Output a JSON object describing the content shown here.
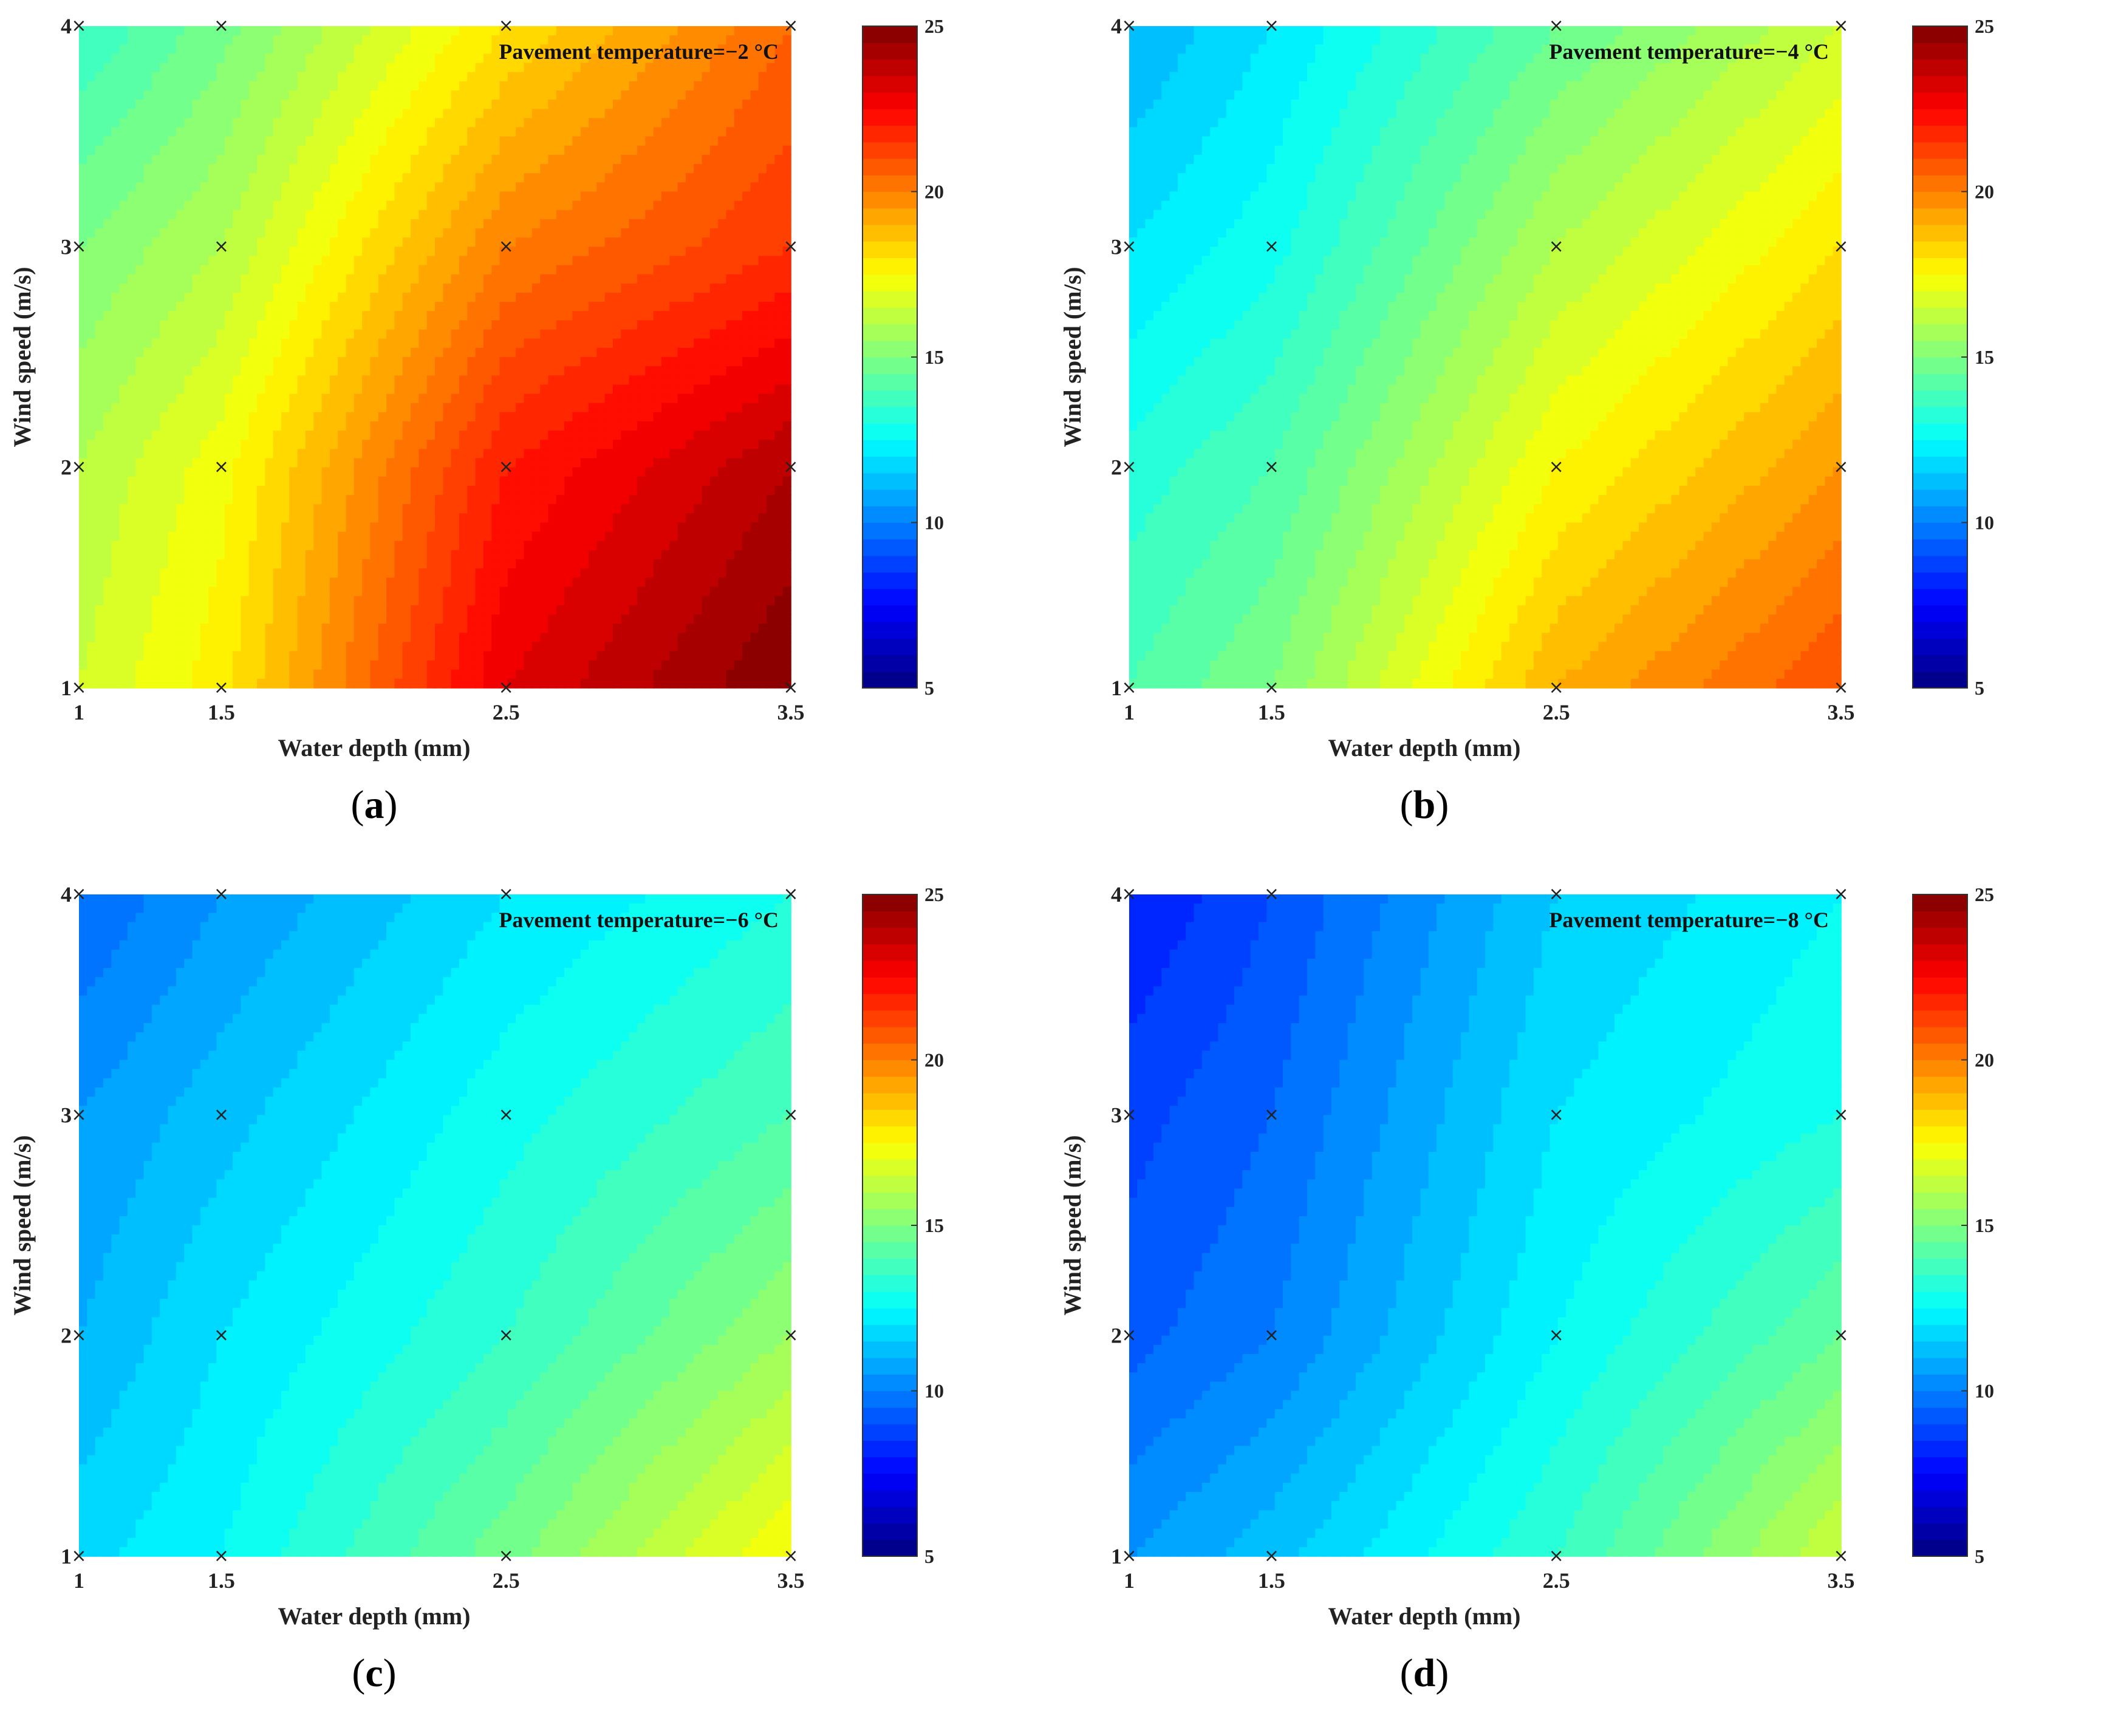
{
  "colormap": "jet",
  "marker_symbol": "×",
  "chart_data": [
    {
      "type": "heatmap",
      "panel_label": "a",
      "annotation": "Pavement temperature=−2 °C",
      "xlabel": "Water depth (mm)",
      "ylabel": "Wind speed (m/s)",
      "x": [
        1,
        1.5,
        2.5,
        3.5
      ],
      "y": [
        1,
        2,
        3,
        4
      ],
      "x_tick_labels": [
        "1",
        "1.5",
        "2.5",
        "3.5"
      ],
      "y_tick_labels": [
        "1",
        "2",
        "3",
        "4"
      ],
      "z": [
        [
          16.5,
          17.8,
          23.0,
          25.0
        ],
        [
          16.0,
          17.3,
          22.0,
          24.0
        ],
        [
          15.0,
          16.0,
          20.0,
          21.5
        ],
        [
          13.5,
          14.8,
          18.0,
          20.5
        ]
      ],
      "clim": [
        5,
        25
      ],
      "colorbar_ticks": [
        "5",
        "10",
        "15",
        "20",
        "25"
      ],
      "markers_at_grid": true
    },
    {
      "type": "heatmap",
      "panel_label": "b",
      "annotation": "Pavement temperature=−4 °C",
      "xlabel": "Water depth (mm)",
      "ylabel": "Wind speed (m/s)",
      "x": [
        1,
        1.5,
        2.5,
        3.5
      ],
      "y": [
        1,
        2,
        3,
        4
      ],
      "x_tick_labels": [
        "1",
        "1.5",
        "2.5",
        "3.5"
      ],
      "y_tick_labels": [
        "1",
        "2",
        "3",
        "4"
      ],
      "z": [
        [
          14.0,
          15.0,
          19.0,
          21.0
        ],
        [
          13.2,
          14.0,
          17.5,
          19.5
        ],
        [
          12.0,
          12.8,
          16.0,
          18.0
        ],
        [
          11.0,
          12.0,
          14.5,
          16.5
        ]
      ],
      "clim": [
        5,
        25
      ],
      "colorbar_ticks": [
        "5",
        "10",
        "15",
        "20",
        "25"
      ],
      "markers_at_grid": true
    },
    {
      "type": "heatmap",
      "panel_label": "c",
      "annotation": "Pavement temperature=−6 °C",
      "xlabel": "Water depth (mm)",
      "ylabel": "Wind speed (m/s)",
      "x": [
        1,
        1.5,
        2.5,
        3.5
      ],
      "y": [
        1,
        2,
        3,
        4
      ],
      "x_tick_labels": [
        "1",
        "1.5",
        "2.5",
        "3.5"
      ],
      "y_tick_labels": [
        "1",
        "2",
        "3",
        "4"
      ],
      "z": [
        [
          11.8,
          12.5,
          14.8,
          17.5
        ],
        [
          11.0,
          12.0,
          13.5,
          15.5
        ],
        [
          10.5,
          11.3,
          12.8,
          14.0
        ],
        [
          9.5,
          10.5,
          12.0,
          13.0
        ]
      ],
      "clim": [
        5,
        25
      ],
      "colorbar_ticks": [
        "5",
        "10",
        "15",
        "20",
        "25"
      ],
      "markers_at_grid": true
    },
    {
      "type": "heatmap",
      "panel_label": "d",
      "annotation": "Pavement temperature=−8 °C",
      "xlabel": "Water depth (mm)",
      "ylabel": "Wind speed (m/s)",
      "x": [
        1,
        1.5,
        2.5,
        3.5
      ],
      "y": [
        1,
        2,
        3,
        4
      ],
      "x_tick_labels": [
        "1",
        "1.5",
        "2.5",
        "3.5"
      ],
      "y_tick_labels": [
        "1",
        "2",
        "3",
        "4"
      ],
      "z": [
        [
          10.5,
          11.3,
          13.5,
          16.5
        ],
        [
          9.3,
          10.0,
          12.5,
          14.5
        ],
        [
          8.8,
          9.5,
          12.0,
          13.0
        ],
        [
          8.0,
          9.0,
          11.5,
          12.5
        ]
      ],
      "clim": [
        5,
        25
      ],
      "colorbar_ticks": [
        "5",
        "10",
        "15",
        "20",
        "25"
      ],
      "markers_at_grid": true
    }
  ]
}
